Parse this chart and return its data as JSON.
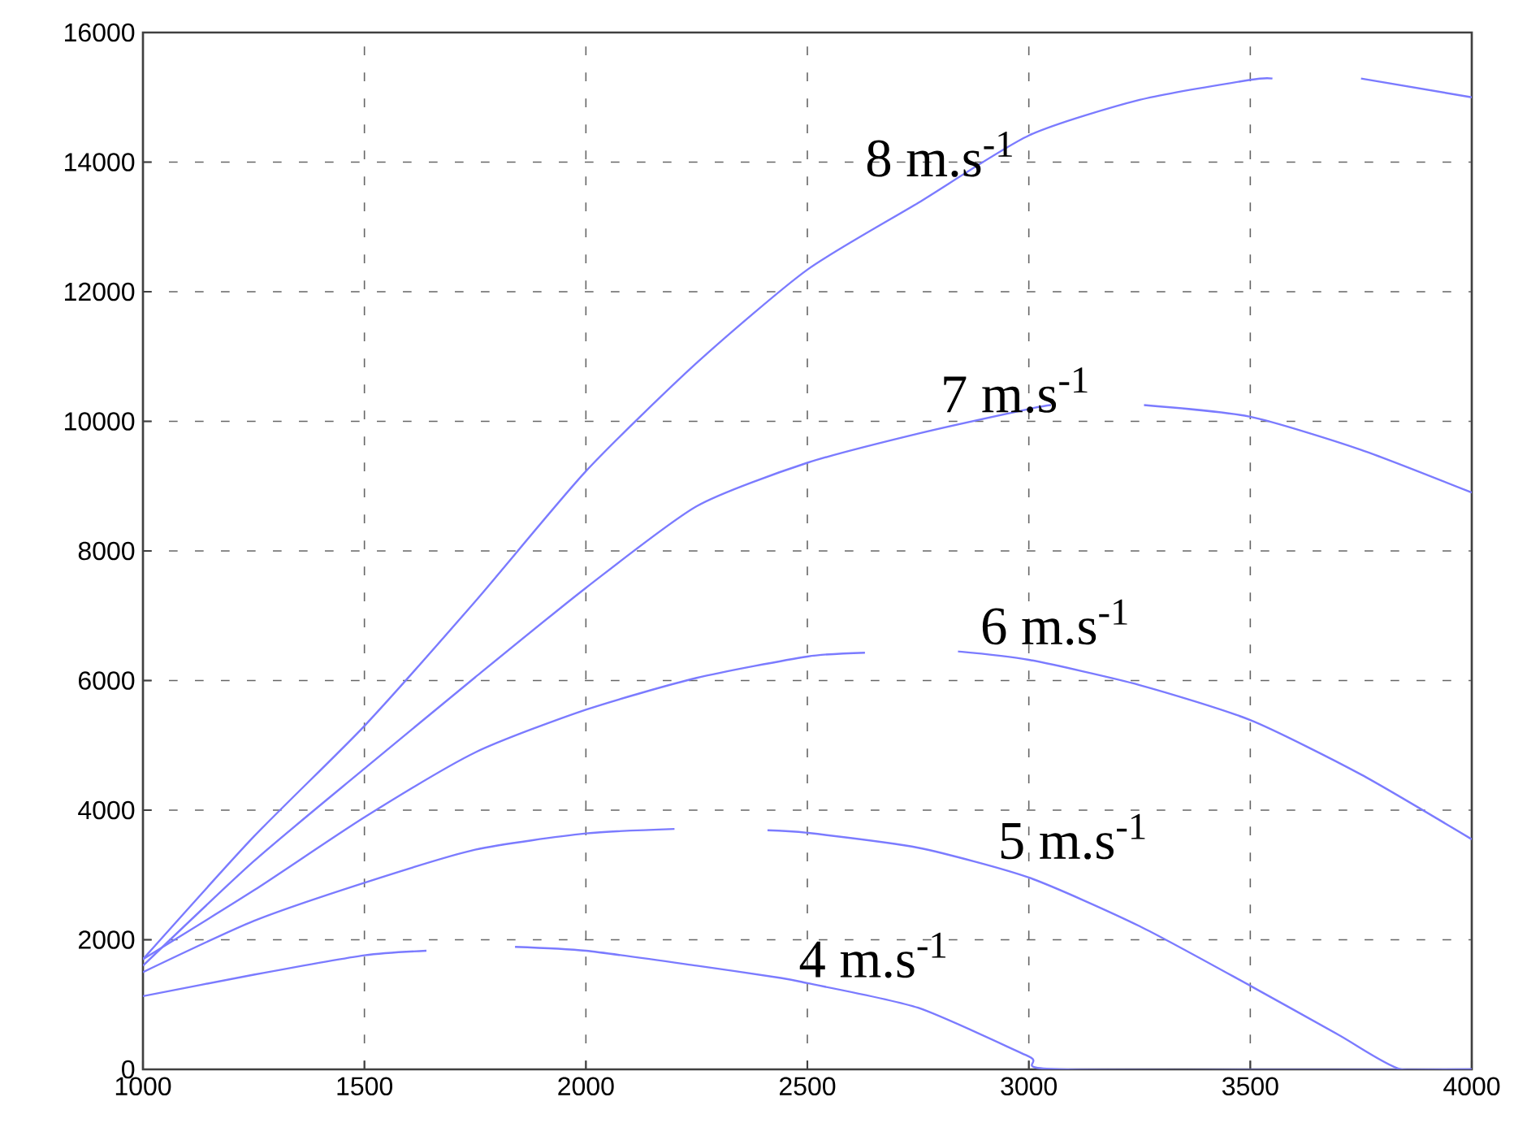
{
  "chart_data": {
    "type": "line",
    "xlim": [
      1000,
      4000
    ],
    "ylim": [
      0,
      16000
    ],
    "xticks": [
      1000,
      1500,
      2000,
      2500,
      3000,
      3500,
      4000
    ],
    "yticks": [
      0,
      2000,
      4000,
      6000,
      8000,
      10000,
      12000,
      14000,
      16000
    ],
    "grid": true,
    "line_style": "solid",
    "marker": "none",
    "series": [
      {
        "name": "4 m.s$^{-1}$",
        "color": "#7b7bff",
        "x": [
          1000,
          1250,
          1500,
          1640,
          1740,
          1840,
          2000,
          2250,
          2440,
          2500,
          2750,
          3000,
          3070,
          4000
        ],
        "values": [
          1130,
          1460,
          1760,
          1830,
          null,
          1890,
          1830,
          1600,
          1410,
          1330,
          950,
          200,
          0,
          0
        ]
      },
      {
        "name": "5 m.s$^{-1}$",
        "color": "#7b7bff",
        "x": [
          1000,
          1250,
          1500,
          1750,
          2000,
          2200,
          2300,
          2410,
          2500,
          2750,
          3000,
          3250,
          3500,
          3700,
          3840,
          4000
        ],
        "values": [
          1500,
          2290,
          2880,
          3390,
          3640,
          3710,
          null,
          3690,
          3650,
          3420,
          2960,
          2210,
          1290,
          530,
          0,
          0
        ]
      },
      {
        "name": "6 m.s$^{-1}$",
        "color": "#7b7bff",
        "x": [
          1000,
          1250,
          1500,
          1750,
          2000,
          2250,
          2500,
          2630,
          2730,
          2840,
          3000,
          3250,
          3500,
          3750,
          4000
        ],
        "values": [
          1700,
          2760,
          3890,
          4890,
          5550,
          6040,
          6370,
          6430,
          null,
          6450,
          6320,
          5930,
          5390,
          4550,
          3550
        ]
      },
      {
        "name": "7 m.s$^{-1}$",
        "color": "#7b7bff",
        "x": [
          1000,
          1250,
          1500,
          1750,
          2000,
          2250,
          2500,
          2750,
          3000,
          3050,
          3150,
          3260,
          3500,
          3750,
          4000
        ],
        "values": [
          1600,
          3210,
          4640,
          6050,
          7430,
          8690,
          9360,
          9810,
          10190,
          10250,
          null,
          10250,
          10070,
          9560,
          8900
        ]
      },
      {
        "name": "8 m.s$^{-1}$",
        "color": "#7b7bff",
        "x": [
          1000,
          1250,
          1500,
          1750,
          2000,
          2250,
          2500,
          2750,
          3000,
          3250,
          3500,
          3550,
          3650,
          3750,
          4000
        ],
        "values": [
          1700,
          3590,
          5300,
          7220,
          9230,
          10900,
          12340,
          13370,
          14410,
          14960,
          15270,
          15290,
          null,
          15290,
          15000
        ]
      }
    ]
  }
}
